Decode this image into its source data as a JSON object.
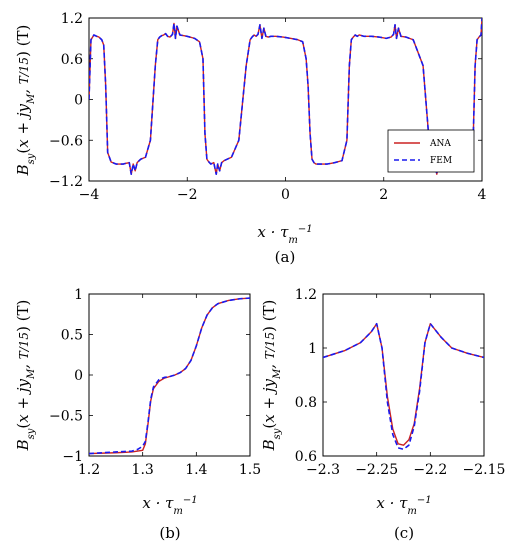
{
  "captions": {
    "a": "(a)",
    "b": "(b)",
    "c": "(c)"
  },
  "colors": {
    "ana": "#cc2222",
    "fem": "#1a1aee"
  },
  "chart_data": [
    {
      "id": "a",
      "type": "line",
      "xlabel": "x · τ_m^{-1}",
      "ylabel": "B_sy(x + jy_M, T/15) (T)",
      "xlim": [
        -4,
        4
      ],
      "ylim": [
        -1.2,
        1.2
      ],
      "xticks": [
        -4,
        -2,
        0,
        2,
        4
      ],
      "xtick_labels": [
        "−4",
        "−2",
        "0",
        "2",
        "4"
      ],
      "yticks": [
        -1.2,
        -0.6,
        0,
        0.6,
        1.2
      ],
      "ytick_labels": [
        "−1.2",
        "−0.6",
        "0",
        "0.6",
        "1.2"
      ],
      "grid": false,
      "legend": {
        "position": "bottom-right",
        "entries": [
          "ANA",
          "FEM"
        ]
      },
      "series": [
        {
          "name": "ANA",
          "style": "solid",
          "x": [
            -4.0,
            -3.96,
            -3.9,
            -3.84,
            -3.8,
            -3.74,
            -3.7,
            -3.66,
            -3.62,
            -3.55,
            -3.45,
            -3.3,
            -3.25,
            -3.18,
            -3.14,
            -3.1,
            -3.06,
            -3.02,
            -2.95,
            -2.85,
            -2.75,
            -2.65,
            -2.6,
            -2.56,
            -2.52,
            -2.48,
            -2.44,
            -2.4,
            -2.35,
            -2.3,
            -2.27,
            -2.24,
            -2.21,
            -2.15,
            -2.0,
            -1.85,
            -1.75,
            -1.68,
            -1.64,
            -1.6,
            -1.56,
            -1.52,
            -1.46,
            -1.41,
            -1.38,
            -1.34,
            -1.3,
            -1.25,
            -1.1,
            -0.95,
            -0.8,
            -0.72,
            -0.68,
            -0.64,
            -0.6,
            -0.56,
            -0.52,
            -0.48,
            -0.44,
            -0.4,
            -0.35,
            -0.3,
            -0.2,
            -0.05,
            0.1,
            0.25,
            0.35,
            0.42,
            0.46,
            0.5,
            0.54,
            0.58,
            0.62,
            0.7,
            0.85,
            1.0,
            1.15,
            1.25,
            1.3,
            1.34,
            1.38,
            1.42,
            1.46,
            1.5,
            1.6,
            1.75,
            1.9,
            2.05,
            2.15,
            2.2,
            2.23,
            2.26,
            2.3,
            2.35,
            2.45,
            2.6,
            2.8,
            2.95,
            3.0,
            3.04,
            3.08,
            3.12,
            3.16,
            3.2,
            3.25,
            3.35,
            3.5,
            3.65,
            3.75,
            3.82,
            3.86,
            3.9,
            3.94,
            3.98,
            4.0
          ],
          "y": [
            0.0,
            0.88,
            0.95,
            0.93,
            0.92,
            0.88,
            0.8,
            0.2,
            -0.78,
            -0.92,
            -0.95,
            -0.95,
            -0.94,
            -0.93,
            -1.1,
            -0.95,
            -1.05,
            -0.93,
            -0.88,
            -0.85,
            -0.6,
            0.5,
            0.88,
            0.92,
            0.94,
            0.95,
            0.97,
            0.93,
            0.92,
            0.96,
            1.12,
            0.9,
            1.08,
            0.95,
            0.93,
            0.9,
            0.85,
            0.6,
            -0.5,
            -0.88,
            -0.92,
            -0.95,
            -0.93,
            -1.1,
            -0.95,
            -1.05,
            -0.93,
            -0.9,
            -0.85,
            -0.6,
            0.5,
            0.88,
            0.92,
            0.95,
            0.93,
            0.96,
            1.1,
            0.9,
            1.05,
            0.93,
            0.92,
            0.93,
            0.93,
            0.92,
            0.9,
            0.88,
            0.85,
            0.6,
            0.2,
            -0.5,
            -0.88,
            -0.93,
            -0.95,
            -0.95,
            -0.95,
            -0.93,
            -0.9,
            -0.6,
            0.5,
            0.88,
            0.92,
            0.95,
            0.93,
            0.95,
            0.93,
            0.93,
            0.92,
            0.9,
            0.92,
            0.96,
            1.1,
            0.9,
            1.05,
            0.93,
            0.92,
            0.88,
            0.5,
            -0.85,
            -0.95,
            -0.93,
            -1.1,
            -0.95,
            -1.05,
            -0.93,
            -0.93,
            -0.95,
            -0.95,
            -0.93,
            -0.88,
            -0.6,
            0.5,
            0.88,
            0.92,
            0.95,
            1.2
          ]
        },
        {
          "name": "FEM",
          "style": "dashed",
          "x": [
            -4.0,
            -3.96,
            -3.9,
            -3.84,
            -3.8,
            -3.74,
            -3.7,
            -3.66,
            -3.62,
            -3.55,
            -3.45,
            -3.3,
            -3.25,
            -3.18,
            -3.14,
            -3.1,
            -3.06,
            -3.02,
            -2.95,
            -2.85,
            -2.75,
            -2.65,
            -2.6,
            -2.56,
            -2.52,
            -2.48,
            -2.44,
            -2.4,
            -2.35,
            -2.3,
            -2.27,
            -2.24,
            -2.21,
            -2.15,
            -2.0,
            -1.85,
            -1.75,
            -1.68,
            -1.64,
            -1.6,
            -1.56,
            -1.52,
            -1.46,
            -1.41,
            -1.38,
            -1.34,
            -1.3,
            -1.25,
            -1.1,
            -0.95,
            -0.8,
            -0.72,
            -0.68,
            -0.64,
            -0.6,
            -0.56,
            -0.52,
            -0.48,
            -0.44,
            -0.4,
            -0.35,
            -0.3,
            -0.2,
            -0.05,
            0.1,
            0.25,
            0.35,
            0.42,
            0.46,
            0.5,
            0.54,
            0.58,
            0.62,
            0.7,
            0.85,
            1.0,
            1.15,
            1.25,
            1.3,
            1.34,
            1.38,
            1.42,
            1.46,
            1.5,
            1.6,
            1.75,
            1.9,
            2.05,
            2.15,
            2.2,
            2.23,
            2.26,
            2.3,
            2.35,
            2.45,
            2.6,
            2.8,
            2.95,
            3.0,
            3.04,
            3.08,
            3.12,
            3.16,
            3.2,
            3.25,
            3.35,
            3.5,
            3.65,
            3.75,
            3.82,
            3.86,
            3.9,
            3.94,
            3.98,
            4.0
          ],
          "y": [
            0.0,
            0.88,
            0.95,
            0.93,
            0.92,
            0.88,
            0.8,
            0.2,
            -0.78,
            -0.92,
            -0.95,
            -0.95,
            -0.94,
            -0.93,
            -1.1,
            -0.95,
            -1.05,
            -0.93,
            -0.88,
            -0.85,
            -0.6,
            0.5,
            0.88,
            0.92,
            0.94,
            0.95,
            0.97,
            0.93,
            0.92,
            0.96,
            1.12,
            0.9,
            1.08,
            0.95,
            0.93,
            0.9,
            0.85,
            0.6,
            -0.5,
            -0.88,
            -0.92,
            -0.95,
            -0.93,
            -1.1,
            -0.95,
            -1.05,
            -0.93,
            -0.9,
            -0.85,
            -0.6,
            0.5,
            0.88,
            0.92,
            0.95,
            0.93,
            0.96,
            1.1,
            0.9,
            1.05,
            0.93,
            0.92,
            0.93,
            0.93,
            0.92,
            0.9,
            0.88,
            0.85,
            0.6,
            0.2,
            -0.5,
            -0.88,
            -0.93,
            -0.95,
            -0.95,
            -0.95,
            -0.93,
            -0.9,
            -0.6,
            0.5,
            0.88,
            0.92,
            0.95,
            0.93,
            0.95,
            0.93,
            0.93,
            0.92,
            0.9,
            0.92,
            0.96,
            1.1,
            0.9,
            1.05,
            0.93,
            0.92,
            0.88,
            0.5,
            -0.85,
            -0.95,
            -0.93,
            -1.1,
            -0.95,
            -1.05,
            -0.93,
            -0.93,
            -0.95,
            -0.95,
            -0.93,
            -0.88,
            -0.6,
            0.5,
            0.88,
            0.92,
            0.95,
            1.2
          ]
        }
      ]
    },
    {
      "id": "b",
      "type": "line",
      "xlabel": "x · τ_m^{-1}",
      "ylabel": "B_sy(x + jy_M, T/15) (T)",
      "xlim": [
        1.2,
        1.5
      ],
      "ylim": [
        -1,
        1
      ],
      "xticks": [
        1.2,
        1.3,
        1.4,
        1.5
      ],
      "xtick_labels": [
        "1.2",
        "1.3",
        "1.4",
        "1.5"
      ],
      "yticks": [
        -1,
        -0.5,
        0,
        0.5,
        1
      ],
      "ytick_labels": [
        "−1",
        "−0.5",
        "0",
        "0.5",
        "1"
      ],
      "grid": false,
      "series": [
        {
          "name": "ANA",
          "style": "solid",
          "x": [
            1.2,
            1.25,
            1.28,
            1.3,
            1.305,
            1.31,
            1.315,
            1.32,
            1.33,
            1.34,
            1.35,
            1.36,
            1.37,
            1.38,
            1.39,
            1.4,
            1.41,
            1.42,
            1.43,
            1.44,
            1.46,
            1.48,
            1.5
          ],
          "y": [
            -0.97,
            -0.96,
            -0.95,
            -0.93,
            -0.85,
            -0.6,
            -0.32,
            -0.17,
            -0.08,
            -0.04,
            -0.02,
            0.0,
            0.03,
            0.08,
            0.18,
            0.36,
            0.58,
            0.74,
            0.83,
            0.88,
            0.92,
            0.94,
            0.95
          ]
        },
        {
          "name": "FEM",
          "style": "dashed",
          "x": [
            1.2,
            1.25,
            1.28,
            1.29,
            1.3,
            1.305,
            1.31,
            1.315,
            1.32,
            1.33,
            1.34,
            1.35,
            1.36,
            1.37,
            1.38,
            1.39,
            1.4,
            1.41,
            1.42,
            1.43,
            1.44,
            1.46,
            1.48,
            1.5
          ],
          "y": [
            -0.97,
            -0.95,
            -0.94,
            -0.92,
            -0.88,
            -0.82,
            -0.58,
            -0.3,
            -0.15,
            -0.06,
            -0.03,
            -0.02,
            0.0,
            0.03,
            0.08,
            0.18,
            0.36,
            0.58,
            0.74,
            0.83,
            0.88,
            0.92,
            0.94,
            0.95
          ]
        }
      ]
    },
    {
      "id": "c",
      "type": "line",
      "xlabel": "x · τ_m^{-1}",
      "ylabel": "B_sy(x + jy_M, T/15) (T)",
      "xlim": [
        -2.3,
        -2.15
      ],
      "ylim": [
        0.6,
        1.2
      ],
      "xticks": [
        -2.3,
        -2.25,
        -2.2,
        -2.15
      ],
      "xtick_labels": [
        "−2.3",
        "−2.25",
        "−2.2",
        "−2.15"
      ],
      "yticks": [
        0.6,
        0.8,
        1,
        1.2
      ],
      "ytick_labels": [
        "0.6",
        "0.8",
        "1",
        "1.2"
      ],
      "grid": false,
      "series": [
        {
          "name": "ANA",
          "style": "solid",
          "x": [
            -2.3,
            -2.28,
            -2.265,
            -2.255,
            -2.25,
            -2.245,
            -2.24,
            -2.235,
            -2.23,
            -2.225,
            -2.22,
            -2.215,
            -2.21,
            -2.205,
            -2.2,
            -2.19,
            -2.18,
            -2.165,
            -2.15
          ],
          "y": [
            0.965,
            0.99,
            1.02,
            1.06,
            1.09,
            1.0,
            0.82,
            0.7,
            0.645,
            0.64,
            0.66,
            0.72,
            0.85,
            1.02,
            1.09,
            1.04,
            1.0,
            0.98,
            0.965
          ]
        },
        {
          "name": "FEM",
          "style": "dashed",
          "x": [
            -2.3,
            -2.28,
            -2.265,
            -2.255,
            -2.25,
            -2.245,
            -2.24,
            -2.235,
            -2.23,
            -2.225,
            -2.22,
            -2.215,
            -2.21,
            -2.205,
            -2.2,
            -2.19,
            -2.18,
            -2.165,
            -2.15
          ],
          "y": [
            0.965,
            0.99,
            1.02,
            1.06,
            1.09,
            1.0,
            0.8,
            0.68,
            0.63,
            0.625,
            0.64,
            0.71,
            0.84,
            1.02,
            1.09,
            1.04,
            1.0,
            0.98,
            0.965
          ]
        }
      ]
    }
  ]
}
